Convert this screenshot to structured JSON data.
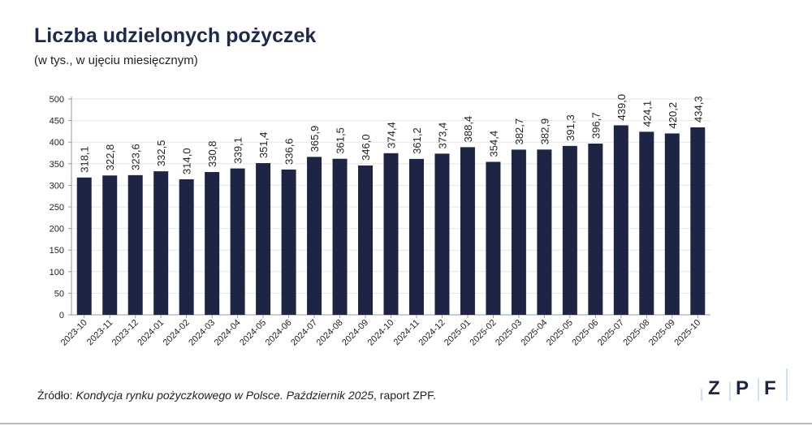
{
  "title": "Liczba udzielonych pożyczek",
  "subtitle": "(w tys., w ujęciu miesięcznym)",
  "source": {
    "prefix": "Źródło: ",
    "italic": "Kondycja rynku pożyczkowego w Polsce. Październik 2025",
    "suffix": ", raport ZPF."
  },
  "logo": "ZPF",
  "chart_data": {
    "type": "bar",
    "title": "Liczba udzielonych pożyczek",
    "ylim": [
      0,
      500
    ],
    "yticks": [
      0,
      50,
      100,
      150,
      200,
      250,
      300,
      350,
      400,
      450,
      500
    ],
    "grid": true,
    "bar_color": "#1e2544",
    "categories": [
      "2023-10",
      "2023-11",
      "2023-12",
      "2024-01",
      "2024-02",
      "2024-03",
      "2024-04",
      "2024-05",
      "2024-06",
      "2024-07",
      "2024-08",
      "2024-09",
      "2024-10",
      "2024-11",
      "2024-12",
      "2025-01",
      "2025-02",
      "2025-03",
      "2025-04",
      "2025-05",
      "2025-06",
      "2025-07",
      "2025-08",
      "2025-09",
      "2025-10"
    ],
    "values": [
      318.1,
      322.8,
      323.6,
      332.5,
      314.0,
      330.8,
      339.1,
      351.4,
      336.6,
      365.9,
      361.5,
      346.0,
      374.4,
      361.2,
      373.4,
      388.4,
      354.4,
      382.7,
      382.9,
      391.3,
      396.7,
      439.0,
      424.1,
      420.2,
      434.3
    ]
  }
}
